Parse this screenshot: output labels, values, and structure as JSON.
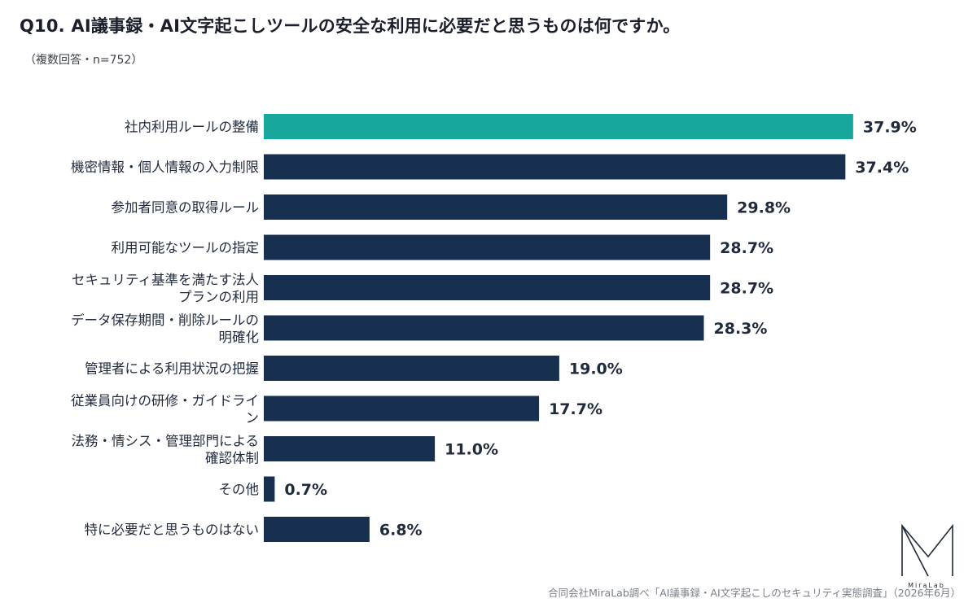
{
  "header": {
    "title": "Q10. AI議事録・AI文字起こしツールの安全な利用に必要だと思うものは何ですか。",
    "subtitle": "（複数回答・n=752）"
  },
  "colors": {
    "highlight": "#17a79c",
    "bar": "#17304f",
    "text": "#1f2a3c"
  },
  "chart_data": {
    "type": "bar",
    "orientation": "horizontal",
    "unit": "%",
    "xlim": [
      0,
      40
    ],
    "grid": false,
    "legend": "none",
    "categories": [
      [
        "社内利用ルールの整備"
      ],
      [
        "機密情報・個人情報の入力制限"
      ],
      [
        "参加者同意の取得ルール"
      ],
      [
        "利用可能なツールの指定"
      ],
      [
        "セキュリティ基準を満たす法人",
        "プランの利用"
      ],
      [
        "データ保存期間・削除ルールの",
        "明確化"
      ],
      [
        "管理者による利用状況の把握"
      ],
      [
        "従業員向けの研修・ガイドライ",
        "ン"
      ],
      [
        "法務・情シス・管理部門による",
        "確認体制"
      ],
      [
        "その他"
      ],
      [
        "特に必要だと思うものはない"
      ]
    ],
    "values": [
      37.9,
      37.4,
      29.8,
      28.7,
      28.7,
      28.3,
      19.0,
      17.7,
      11.0,
      0.7,
      6.8
    ],
    "value_labels": [
      "37.9%",
      "37.4%",
      "29.8%",
      "28.7%",
      "28.7%",
      "28.3%",
      "19.0%",
      "17.7%",
      "11.0%",
      "0.7%",
      "6.8%"
    ],
    "highlight_index": 0
  },
  "footer": {
    "source": "合同会社MiraLab調べ「AI議事録・AI文字起こしのセキュリティ実態調査」（2026年6月）"
  },
  "logo": {
    "text": "MiraLab",
    "icon": "miralab-logo-icon"
  }
}
